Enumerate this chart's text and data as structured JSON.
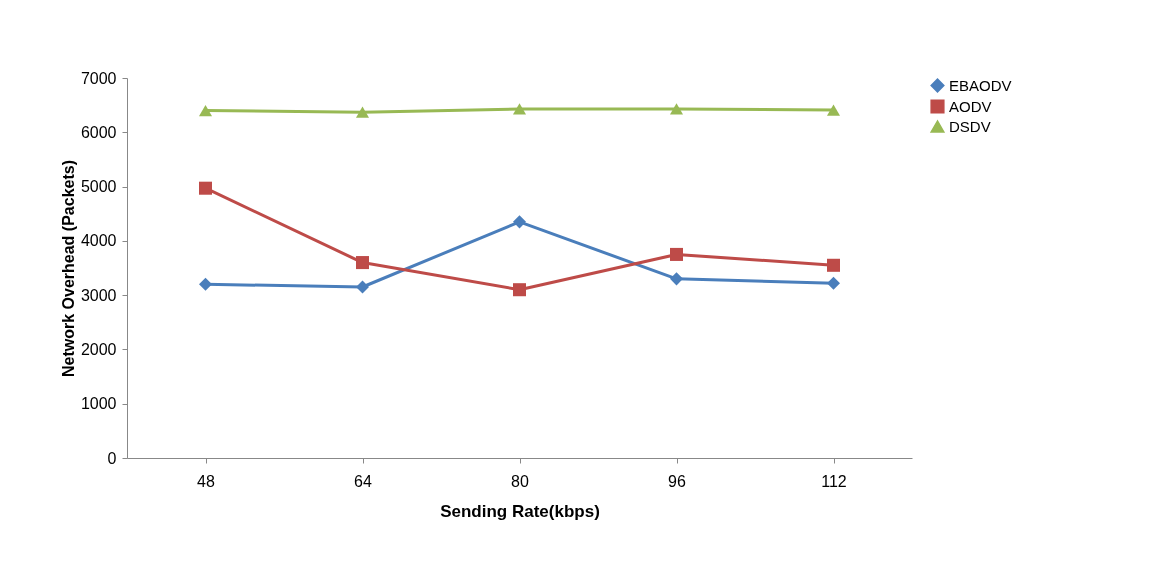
{
  "chart_data": {
    "type": "line",
    "xlabel": "Sending Rate(kbps)",
    "ylabel": "Network Overhead (Packets)",
    "categories": [
      "48",
      "64",
      "80",
      "96",
      "112"
    ],
    "series": [
      {
        "name": "EBAODV",
        "color": "#4a7ebb",
        "marker": "diamond",
        "values": [
          3200,
          3150,
          4350,
          3300,
          3220
        ]
      },
      {
        "name": "AODV",
        "color": "#be4b48",
        "marker": "square",
        "values": [
          4970,
          3600,
          3100,
          3750,
          3550
        ]
      },
      {
        "name": "DSDV",
        "color": "#98b954",
        "marker": "triangle",
        "values": [
          6400,
          6370,
          6430,
          6430,
          6410
        ]
      }
    ],
    "ylim": [
      0,
      7000
    ],
    "yticks": [
      0,
      1000,
      2000,
      3000,
      4000,
      5000,
      6000,
      7000
    ],
    "grid": false,
    "legend": "right",
    "line_style": "solid"
  }
}
